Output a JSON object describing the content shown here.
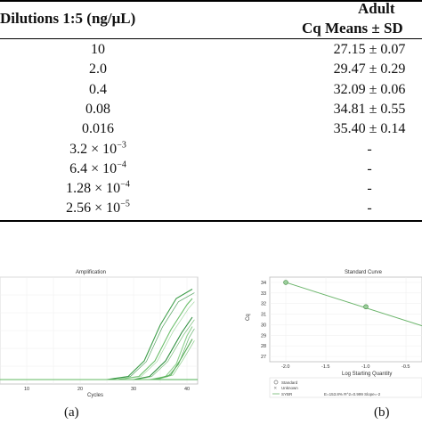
{
  "table": {
    "header_col1": "Dilutions 1:5 (ng/μL)",
    "header_col2_line1": "Adult",
    "header_col2_line2": "Cq Means ± SD",
    "rows": [
      {
        "dilution": "10",
        "cq": "27.15 ± 0.07"
      },
      {
        "dilution": "2.0",
        "cq": "29.47 ± 0.29"
      },
      {
        "dilution": "0.4",
        "cq": "32.09 ± 0.06"
      },
      {
        "dilution": "0.08",
        "cq": "34.81 ± 0.55"
      },
      {
        "dilution": "0.016",
        "cq": "35.40 ± 0.14"
      },
      {
        "dilution_base": "3.2 × 10",
        "dilution_exp": "−3",
        "cq": "-"
      },
      {
        "dilution_base": "6.4 × 10",
        "dilution_exp": "−4",
        "cq": "-"
      },
      {
        "dilution_base": "1.28 × 10",
        "dilution_exp": "−4",
        "cq": "-"
      },
      {
        "dilution_base": "2.56 × 10",
        "dilution_exp": "−5",
        "cq": "-"
      }
    ]
  },
  "figure_a": {
    "title": "Amplification",
    "xlabel": "Cycles",
    "x_ticks": [
      "10",
      "20",
      "30",
      "40"
    ],
    "caption": "(a)",
    "line_color": "#4caf50"
  },
  "figure_b": {
    "title": "Standard Curve",
    "xlabel": "Log Starting Quantity",
    "ylabel": "Cq",
    "x_ticks": [
      "-2.0",
      "-1.5",
      "-1.0",
      "-0.5"
    ],
    "y_ticks": [
      "34",
      "33",
      "32",
      "31",
      "30",
      "29",
      "28",
      "27"
    ],
    "legend": [
      "Standard",
      "Unknown",
      "SYBR"
    ],
    "legend_stats": "E=153.8% R^2=0.999 Slope=-2",
    "caption": "(b)",
    "line_color": "#6ab46a"
  },
  "chart_data": [
    {
      "type": "line",
      "title": "Amplification",
      "xlabel": "Cycles",
      "ylabel": "",
      "xlim": [
        5,
        42
      ],
      "description_series": [
        {
          "values_x": [
            25,
            29,
            32,
            35,
            38,
            41
          ],
          "values_y": [
            0,
            2,
            12,
            35,
            52,
            58
          ]
        },
        {
          "values_x": [
            27,
            31,
            34,
            37,
            40,
            41
          ],
          "values_y": [
            0,
            2,
            12,
            32,
            48,
            52
          ]
        },
        {
          "values_x": [
            30,
            33,
            36,
            39,
            41
          ],
          "values_y": [
            0,
            2,
            12,
            30,
            40
          ]
        },
        {
          "values_x": [
            33,
            36,
            38,
            40,
            41
          ],
          "values_y": [
            0,
            2,
            10,
            28,
            34
          ]
        },
        {
          "values_x": [
            34,
            37,
            39,
            41
          ],
          "values_y": [
            0,
            3,
            14,
            26
          ]
        }
      ]
    },
    {
      "type": "scatter",
      "title": "Standard Curve",
      "xlabel": "Log Starting Quantity",
      "ylabel": "Cq",
      "xlim": [
        -2.2,
        -0.3
      ],
      "ylim": [
        26.5,
        34.5
      ],
      "points": [
        {
          "x": -2.0,
          "y": 34.0
        },
        {
          "x": -1.0,
          "y": 31.7
        }
      ],
      "fit_line": [
        {
          "x": -2.0,
          "y": 34.0
        },
        {
          "x": -0.3,
          "y": 29.9
        }
      ]
    }
  ]
}
